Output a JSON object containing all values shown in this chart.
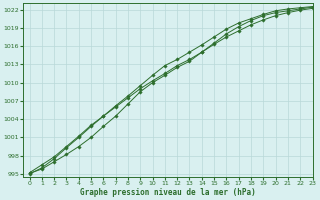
{
  "xlabel": "Graphe pression niveau de la mer (hPa)",
  "bg_color": "#d9f0f0",
  "grid_color": "#b8d8d8",
  "line_color": "#2d6e2d",
  "marker_color": "#2d6e2d",
  "xlim": [
    -0.5,
    23
  ],
  "ylim": [
    994.5,
    1023
  ],
  "yticks": [
    995,
    998,
    1001,
    1004,
    1007,
    1010,
    1013,
    1016,
    1019,
    1022
  ],
  "xticks": [
    0,
    1,
    2,
    3,
    4,
    5,
    6,
    7,
    8,
    9,
    10,
    11,
    12,
    13,
    14,
    15,
    16,
    17,
    18,
    19,
    20,
    21,
    22,
    23
  ],
  "line1_x": [
    0,
    1,
    2,
    3,
    4,
    5,
    6,
    7,
    8,
    9,
    10,
    11,
    12,
    13,
    14,
    15,
    16,
    17,
    18,
    19,
    20,
    21,
    22,
    23
  ],
  "line1_y": [
    995.2,
    996.5,
    997.8,
    999.5,
    1001.2,
    1003.0,
    1004.5,
    1006.0,
    1007.5,
    1009.0,
    1010.3,
    1011.5,
    1012.8,
    1013.8,
    1015.0,
    1016.3,
    1017.5,
    1018.5,
    1019.5,
    1020.3,
    1021.0,
    1021.5,
    1021.9,
    1022.2
  ],
  "line2_x": [
    0,
    1,
    2,
    3,
    4,
    5,
    6,
    7,
    8,
    9,
    10,
    11,
    12,
    13,
    14,
    15,
    16,
    17,
    18,
    19,
    20,
    21,
    22,
    23
  ],
  "line2_y": [
    995.0,
    996.0,
    997.5,
    999.3,
    1001.0,
    1002.8,
    1004.5,
    1006.2,
    1007.8,
    1009.5,
    1011.2,
    1012.8,
    1013.8,
    1015.0,
    1016.2,
    1017.5,
    1018.8,
    1019.8,
    1020.5,
    1021.2,
    1021.8,
    1022.1,
    1022.3,
    1022.5
  ],
  "line3_x": [
    0,
    1,
    2,
    3,
    4,
    5,
    6,
    7,
    8,
    9,
    10,
    11,
    12,
    13,
    14,
    15,
    16,
    17,
    18,
    19,
    20,
    21,
    22,
    23
  ],
  "line3_y": [
    995.1,
    995.8,
    997.0,
    998.2,
    999.5,
    1001.0,
    1002.8,
    1004.5,
    1006.5,
    1008.5,
    1010.0,
    1011.2,
    1012.5,
    1013.5,
    1015.0,
    1016.5,
    1018.0,
    1019.2,
    1020.2,
    1021.0,
    1021.5,
    1021.8,
    1022.1,
    1022.4
  ]
}
